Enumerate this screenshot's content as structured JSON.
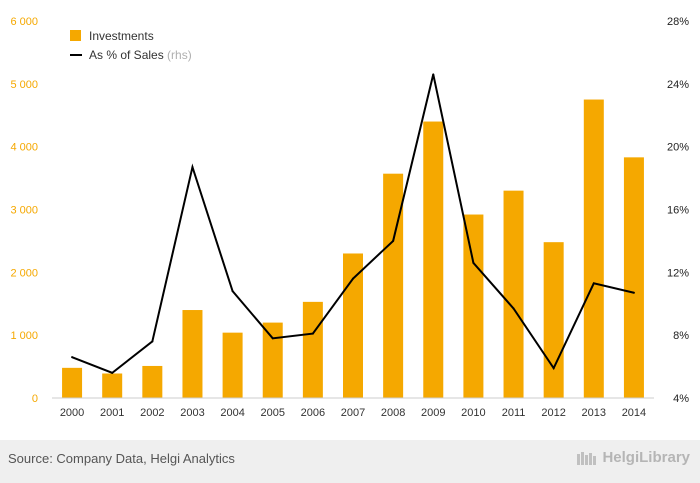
{
  "chart_data": {
    "type": "bar",
    "categories": [
      "2000",
      "2001",
      "2002",
      "2003",
      "2004",
      "2005",
      "2006",
      "2007",
      "2008",
      "2009",
      "2010",
      "2011",
      "2012",
      "2013",
      "2014"
    ],
    "series": [
      {
        "name": "Investments",
        "type": "bar",
        "axis": "left",
        "color": "#f5a800",
        "values": [
          480,
          390,
          510,
          1400,
          1040,
          1200,
          1530,
          2300,
          3570,
          4400,
          2920,
          3300,
          2480,
          4750,
          3830
        ]
      },
      {
        "name": "As % of Sales",
        "legend_suffix": "(rhs)",
        "type": "line",
        "axis": "right",
        "color": "#000000",
        "values": [
          6.6,
          5.6,
          7.6,
          18.7,
          10.8,
          7.8,
          8.1,
          11.6,
          14.0,
          24.6,
          12.6,
          9.7,
          5.9,
          11.3,
          10.7
        ]
      }
    ],
    "ylim": [
      0,
      6000
    ],
    "y2lim": [
      4,
      28
    ],
    "yticks": [
      "0",
      "1 000",
      "2 000",
      "3 000",
      "4 000",
      "5 000",
      "6 000"
    ],
    "y2ticks": [
      "4%",
      "8%",
      "12%",
      "16%",
      "20%",
      "24%",
      "28%"
    ],
    "grid": false,
    "legend": "top-left"
  },
  "footer": {
    "source": "Source: Company Data, Helgi Analytics",
    "brand": "HelgiLibrary"
  },
  "colors": {
    "bar": "#f5a800",
    "line": "#000000",
    "left_axis_text": "#f5a800",
    "footer_bg": "#efefef"
  }
}
